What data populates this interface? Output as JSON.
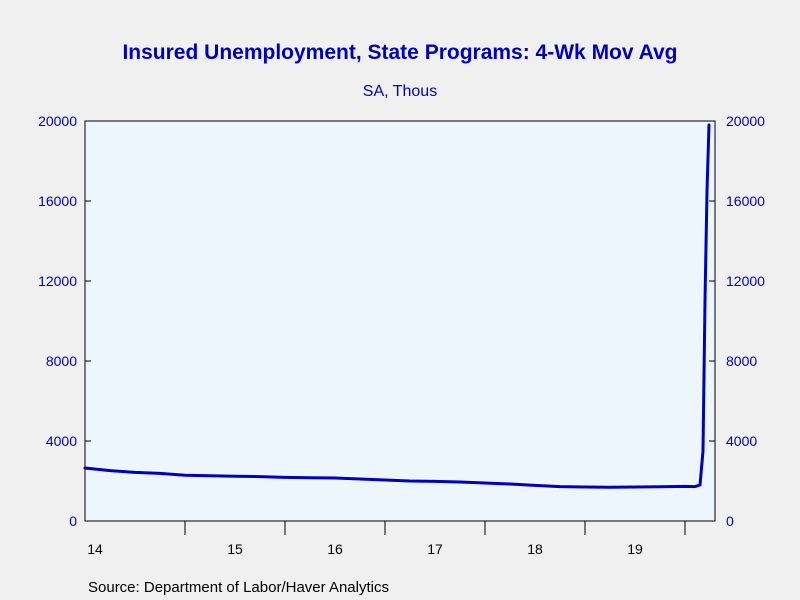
{
  "chart_data": {
    "type": "line",
    "title": "Insured Unemployment, State Programs: 4-Wk Mov Avg",
    "subtitle": "SA, Thous",
    "source": "Source:  Department of Labor/Haver Analytics",
    "x_tick_labels": [
      "14",
      "15",
      "16",
      "17",
      "18",
      "19"
    ],
    "y_ticks": [
      0,
      4000,
      8000,
      12000,
      16000,
      20000
    ],
    "y_tick_labels": [
      "0",
      "4000",
      "8000",
      "12000",
      "16000",
      "20000"
    ],
    "ylim": [
      0,
      20000
    ],
    "xlim": [
      2014.0,
      2020.3
    ],
    "grid": false,
    "colors": {
      "line": "#0000c0",
      "text": "#0000c0",
      "plot_bg": "#eef6fd",
      "page_bg": "#f0f0f0"
    },
    "series": [
      {
        "x": [
          2014.0,
          2014.25,
          2014.5,
          2014.75,
          2015.0,
          2015.25,
          2015.5,
          2015.75,
          2016.0,
          2016.25,
          2016.5,
          2016.75,
          2017.0,
          2017.25,
          2017.5,
          2017.75,
          2018.0,
          2018.25,
          2018.5,
          2018.75,
          2019.0,
          2019.25,
          2019.5,
          2019.75,
          2020.0,
          2020.1,
          2020.15,
          2020.18,
          2020.2,
          2020.22,
          2020.24
        ],
        "values": [
          2650,
          2520,
          2430,
          2380,
          2290,
          2260,
          2240,
          2220,
          2180,
          2160,
          2150,
          2100,
          2050,
          2000,
          1980,
          1950,
          1900,
          1850,
          1780,
          1720,
          1700,
          1690,
          1700,
          1710,
          1730,
          1720,
          1800,
          3500,
          11000,
          16500,
          19800
        ]
      }
    ]
  }
}
